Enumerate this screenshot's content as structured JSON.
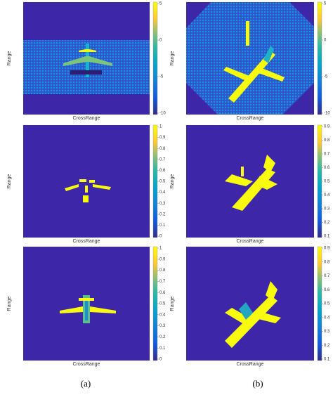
{
  "panels": [
    {
      "ylabel": "Range",
      "xlabel": "CrossRange",
      "colorbar_ticks": [
        5,
        0,
        -5,
        -10
      ]
    },
    {
      "ylabel": "Range",
      "xlabel": "CrossRange",
      "colorbar_ticks": [
        5,
        0,
        -5,
        -10
      ]
    },
    {
      "ylabel": "Range",
      "xlabel": "CrossRange",
      "colorbar_ticks": [
        1,
        0.9,
        0.8,
        0.7,
        0.6,
        0.5,
        0.4,
        0.3,
        0.2,
        0.1,
        0
      ]
    },
    {
      "ylabel": "Range",
      "xlabel": "CrossRange",
      "colorbar_ticks": [
        0.9,
        0.8,
        0.7,
        0.6,
        0.5,
        0.4,
        0.3,
        0.2,
        0.1
      ]
    },
    {
      "ylabel": "Range",
      "xlabel": "CrossRange",
      "colorbar_ticks": [
        1,
        0.9,
        0.8,
        0.7,
        0.6,
        0.5,
        0.4,
        0.3,
        0.2,
        0.1,
        0
      ]
    },
    {
      "ylabel": "Range",
      "xlabel": "CrossRange",
      "colorbar_ticks": [
        0.9,
        0.8,
        0.7,
        0.6,
        0.5,
        0.4,
        0.3,
        0.2,
        0.1
      ]
    }
  ],
  "captions": [
    "(a)",
    "(b)"
  ]
}
